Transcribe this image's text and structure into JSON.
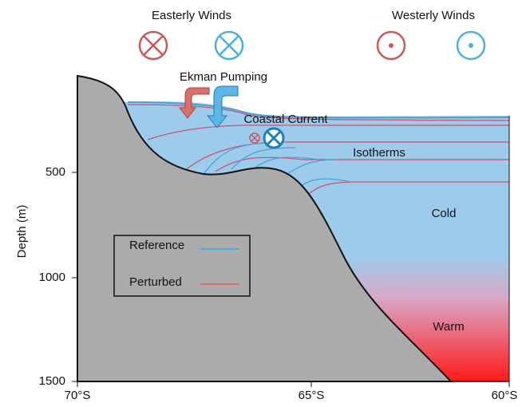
{
  "header": {
    "easterly": "Easterly Winds",
    "westerly": "Westerly Winds"
  },
  "annotations": {
    "ekman": "Ekman Pumping",
    "coastal": "Coastal Current",
    "isotherms": "Isotherms",
    "cold": "Cold",
    "warm": "Warm"
  },
  "axes": {
    "y_label": "Depth (m)",
    "y_ticks": [
      "500",
      "1000",
      "1500"
    ],
    "x_ticks": [
      "70°S",
      "65°S",
      "60°S"
    ]
  },
  "legend": {
    "items": [
      "Reference",
      "Perturbed"
    ]
  }
}
